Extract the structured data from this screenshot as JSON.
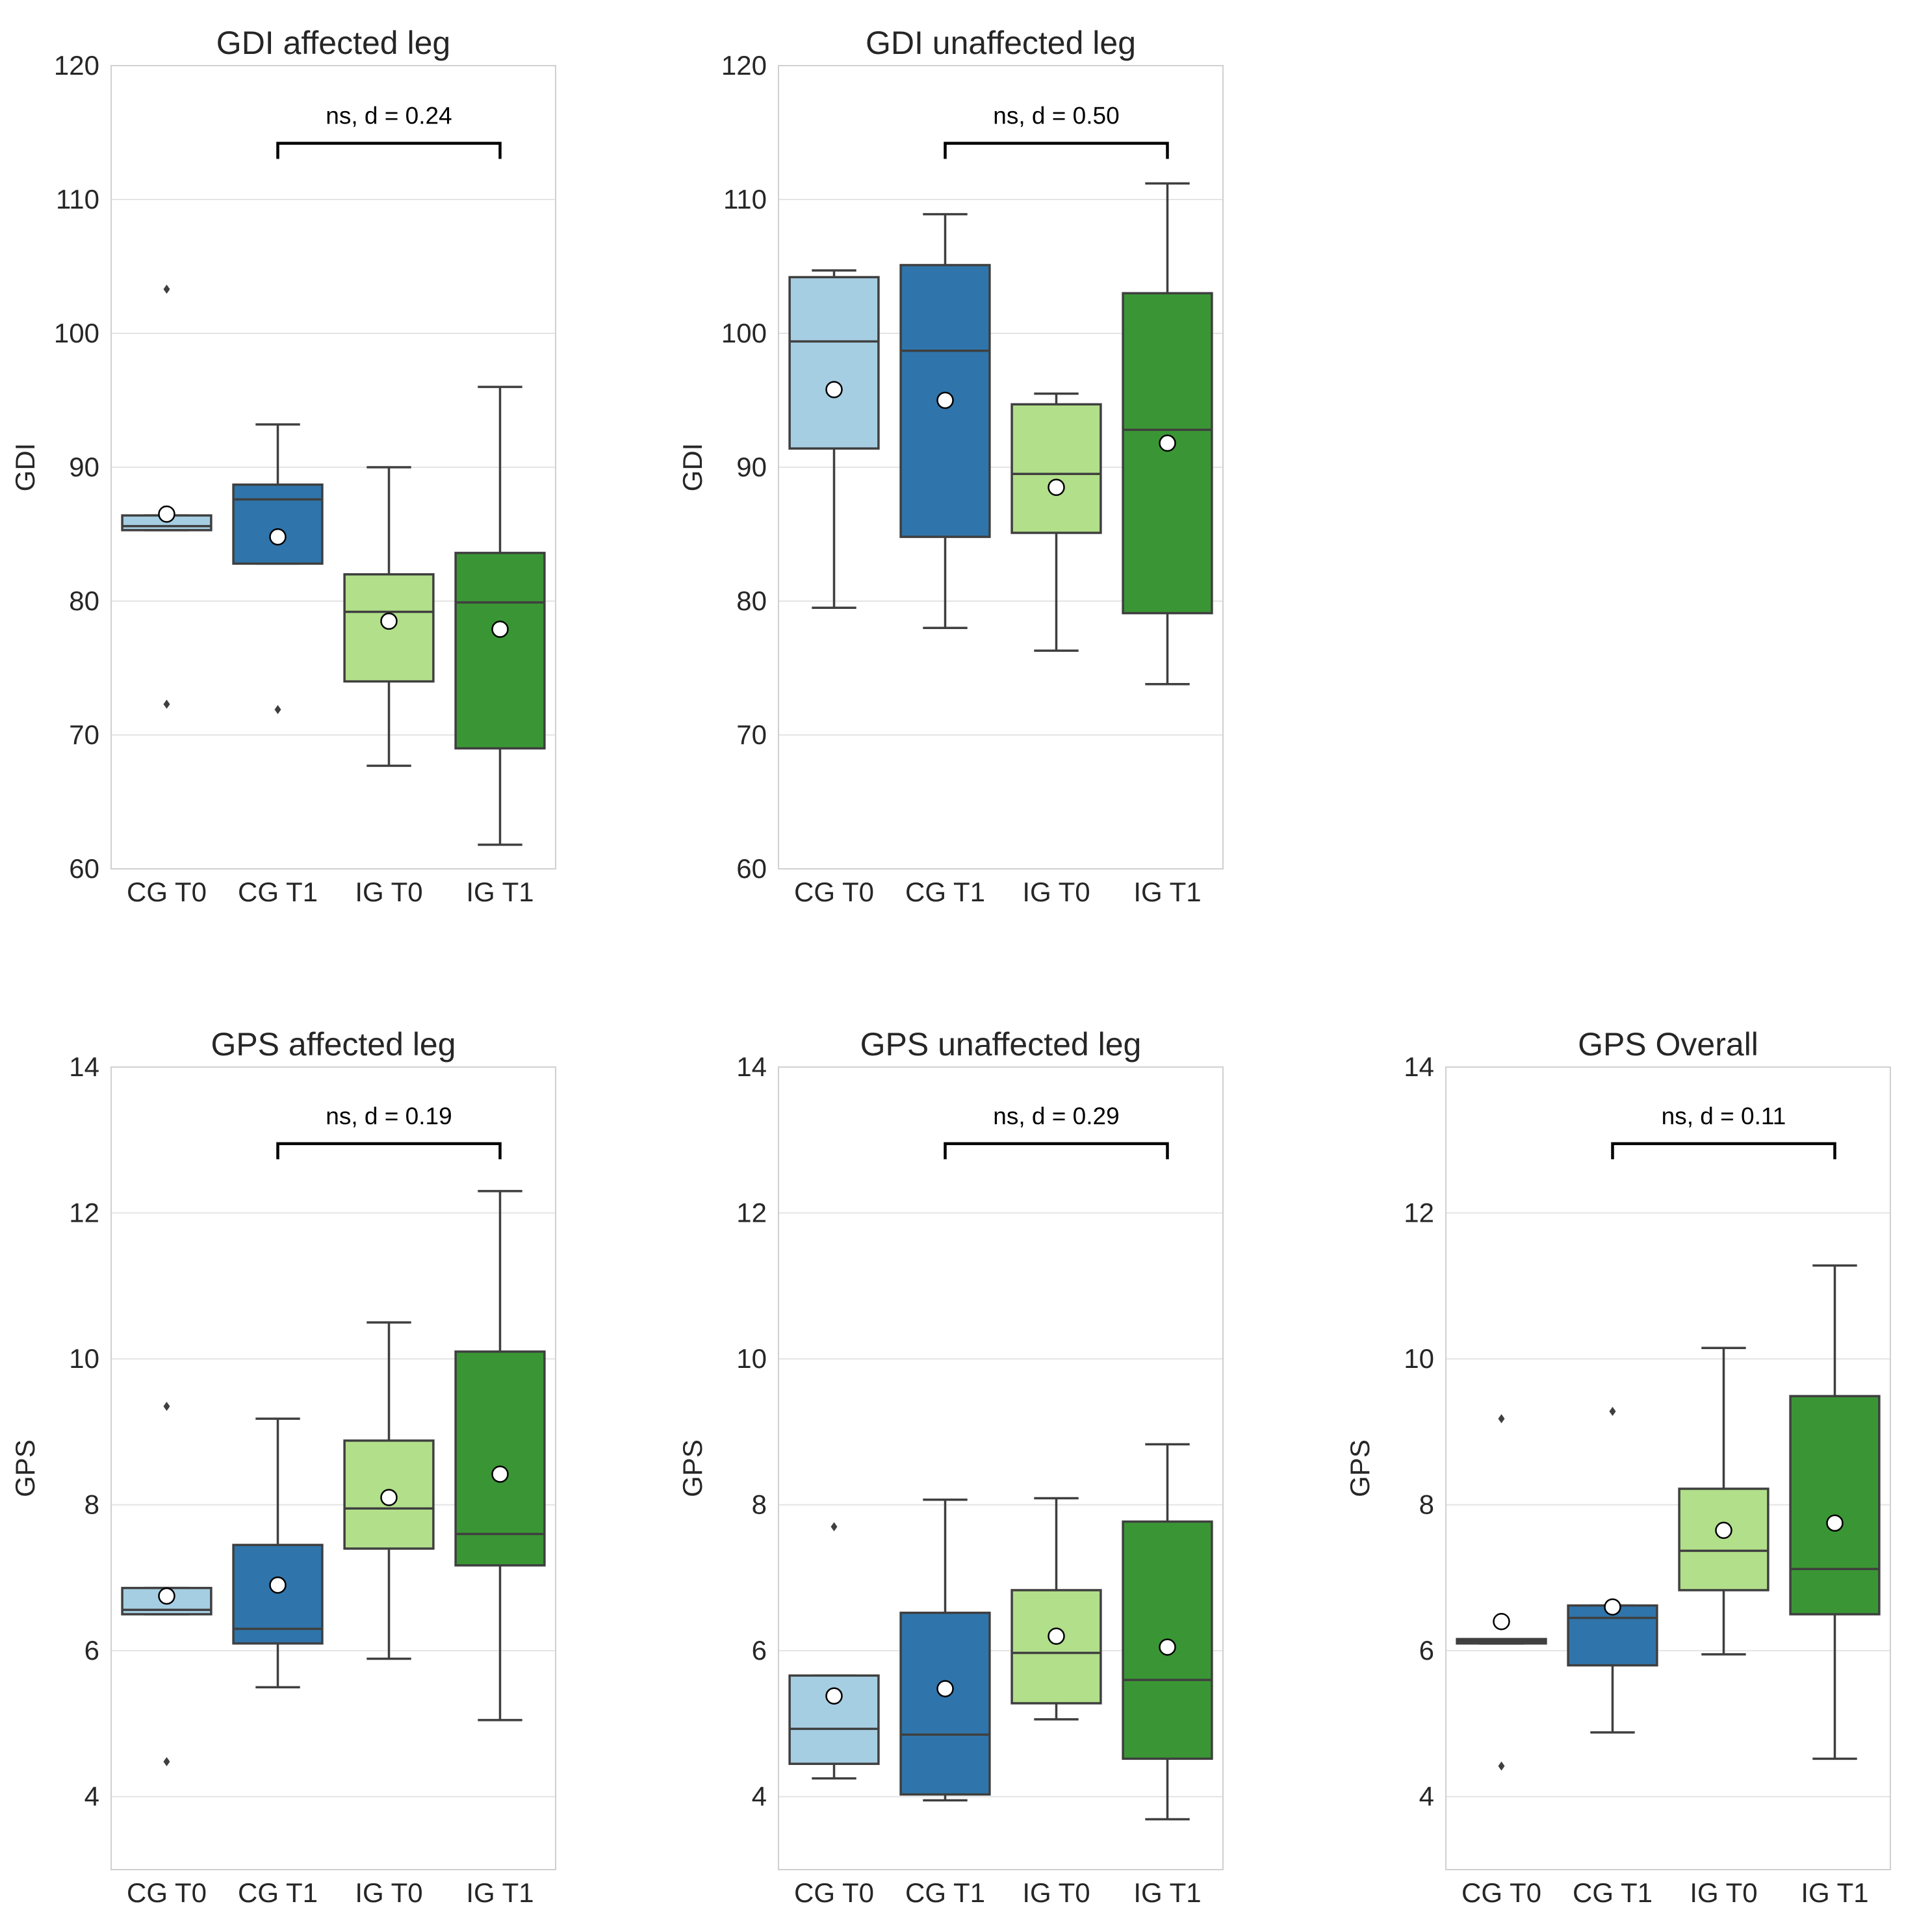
{
  "figure": {
    "background": "#ffffff",
    "grid_color": "#e4e4e4",
    "frame_color": "#d0d0d0"
  },
  "palette": {
    "CG T0": "#a6cee3",
    "CG T1": "#2f75ab",
    "IG T0": "#b2df8a",
    "IG T1": "#3a9635"
  },
  "chart_data": [
    {
      "type": "box",
      "title": "GDI affected leg",
      "ylabel": "GDI",
      "ylim": [
        60,
        120
      ],
      "yticks": [
        60,
        70,
        80,
        90,
        100,
        110,
        120
      ],
      "categories": [
        "CG T0",
        "CG T1",
        "IG T0",
        "IG T1"
      ],
      "boxes": [
        {
          "q1": 85.3,
          "median": 85.6,
          "q3": 86.4,
          "whisker_low": 85.3,
          "whisker_high": 86.4,
          "mean": 86.5,
          "outliers": [
            103.3,
            72.3
          ]
        },
        {
          "q1": 82.8,
          "median": 87.6,
          "q3": 88.7,
          "whisker_low": 82.8,
          "whisker_high": 93.2,
          "mean": 84.8,
          "outliers": [
            71.9
          ]
        },
        {
          "q1": 74.0,
          "median": 79.2,
          "q3": 82.0,
          "whisker_low": 67.7,
          "whisker_high": 90.0,
          "mean": 78.5,
          "outliers": []
        },
        {
          "q1": 69.0,
          "median": 79.9,
          "q3": 83.6,
          "whisker_low": 61.8,
          "whisker_high": 96.0,
          "mean": 77.9,
          "outliers": []
        }
      ],
      "annotation": {
        "text": "ns, d = 0.24",
        "from": "CG T1",
        "to": "IG T1",
        "y": 114.2
      }
    },
    {
      "type": "box",
      "title": "GDI unaffected leg",
      "ylabel": "GDI",
      "ylim": [
        60,
        120
      ],
      "yticks": [
        60,
        70,
        80,
        90,
        100,
        110,
        120
      ],
      "categories": [
        "CG T0",
        "CG T1",
        "IG T0",
        "IG T1"
      ],
      "boxes": [
        {
          "q1": 91.4,
          "median": 99.4,
          "q3": 104.2,
          "whisker_low": 79.5,
          "whisker_high": 104.7,
          "mean": 95.8,
          "outliers": []
        },
        {
          "q1": 84.8,
          "median": 98.7,
          "q3": 105.1,
          "whisker_low": 78.0,
          "whisker_high": 108.9,
          "mean": 95.0,
          "outliers": []
        },
        {
          "q1": 85.1,
          "median": 89.5,
          "q3": 94.7,
          "whisker_low": 76.3,
          "whisker_high": 95.5,
          "mean": 88.5,
          "outliers": []
        },
        {
          "q1": 79.1,
          "median": 92.8,
          "q3": 103.0,
          "whisker_low": 73.8,
          "whisker_high": 111.2,
          "mean": 91.8,
          "outliers": []
        }
      ],
      "annotation": {
        "text": "ns, d = 0.50",
        "from": "CG T1",
        "to": "IG T1",
        "y": 114.2
      }
    },
    {
      "type": "box",
      "title": "GPS affected leg",
      "ylabel": "GPS",
      "ylim": [
        3,
        14
      ],
      "yticks": [
        4,
        6,
        8,
        10,
        12,
        14
      ],
      "categories": [
        "CG T0",
        "CG T1",
        "IG T0",
        "IG T1"
      ],
      "boxes": [
        {
          "q1": 6.5,
          "median": 6.56,
          "q3": 6.86,
          "whisker_low": 6.5,
          "whisker_high": 6.86,
          "mean": 6.75,
          "outliers": [
            9.35,
            4.48
          ]
        },
        {
          "q1": 6.1,
          "median": 6.3,
          "q3": 7.45,
          "whisker_low": 5.5,
          "whisker_high": 9.18,
          "mean": 6.9,
          "outliers": []
        },
        {
          "q1": 7.4,
          "median": 7.95,
          "q3": 8.88,
          "whisker_low": 5.89,
          "whisker_high": 10.5,
          "mean": 8.1,
          "outliers": []
        },
        {
          "q1": 7.17,
          "median": 7.6,
          "q3": 10.1,
          "whisker_low": 5.05,
          "whisker_high": 12.3,
          "mean": 8.42,
          "outliers": []
        }
      ],
      "annotation": {
        "text": "ns, d = 0.19",
        "from": "CG T1",
        "to": "IG T1",
        "y": 12.95
      }
    },
    {
      "type": "box",
      "title": "GPS unaffected leg",
      "ylabel": "GPS",
      "ylim": [
        3,
        14
      ],
      "yticks": [
        4,
        6,
        8,
        10,
        12,
        14
      ],
      "categories": [
        "CG T0",
        "CG T1",
        "IG T0",
        "IG T1"
      ],
      "boxes": [
        {
          "q1": 4.45,
          "median": 4.93,
          "q3": 5.66,
          "whisker_low": 4.25,
          "whisker_high": 5.66,
          "mean": 5.38,
          "outliers": [
            7.7
          ]
        },
        {
          "q1": 4.03,
          "median": 4.85,
          "q3": 6.52,
          "whisker_low": 3.95,
          "whisker_high": 8.07,
          "mean": 5.48,
          "outliers": []
        },
        {
          "q1": 5.28,
          "median": 5.97,
          "q3": 6.83,
          "whisker_low": 5.06,
          "whisker_high": 8.09,
          "mean": 6.2,
          "outliers": []
        },
        {
          "q1": 4.52,
          "median": 5.6,
          "q3": 7.77,
          "whisker_low": 3.69,
          "whisker_high": 8.83,
          "mean": 6.05,
          "outliers": []
        }
      ],
      "annotation": {
        "text": "ns, d = 0.29",
        "from": "CG T1",
        "to": "IG T1",
        "y": 12.95
      }
    },
    {
      "type": "box",
      "title": "GPS Overall",
      "ylabel": "GPS",
      "ylim": [
        3,
        14
      ],
      "yticks": [
        4,
        6,
        8,
        10,
        12,
        14
      ],
      "categories": [
        "CG T0",
        "CG T1",
        "IG T0",
        "IG T1"
      ],
      "boxes": [
        {
          "q1": 6.1,
          "median": 6.13,
          "q3": 6.16,
          "whisker_low": 6.1,
          "whisker_high": 6.16,
          "mean": 6.4,
          "outliers": [
            9.18,
            4.42
          ]
        },
        {
          "q1": 5.8,
          "median": 6.45,
          "q3": 6.62,
          "whisker_low": 4.88,
          "whisker_high": 6.62,
          "mean": 6.6,
          "outliers": [
            9.28
          ]
        },
        {
          "q1": 6.83,
          "median": 7.37,
          "q3": 8.22,
          "whisker_low": 5.95,
          "whisker_high": 10.15,
          "mean": 7.65,
          "outliers": []
        },
        {
          "q1": 6.5,
          "median": 7.12,
          "q3": 9.49,
          "whisker_low": 4.52,
          "whisker_high": 11.28,
          "mean": 7.75,
          "outliers": []
        }
      ],
      "annotation": {
        "text": "ns, d = 0.11",
        "from": "CG T1",
        "to": "IG T1",
        "y": 12.95
      }
    }
  ]
}
